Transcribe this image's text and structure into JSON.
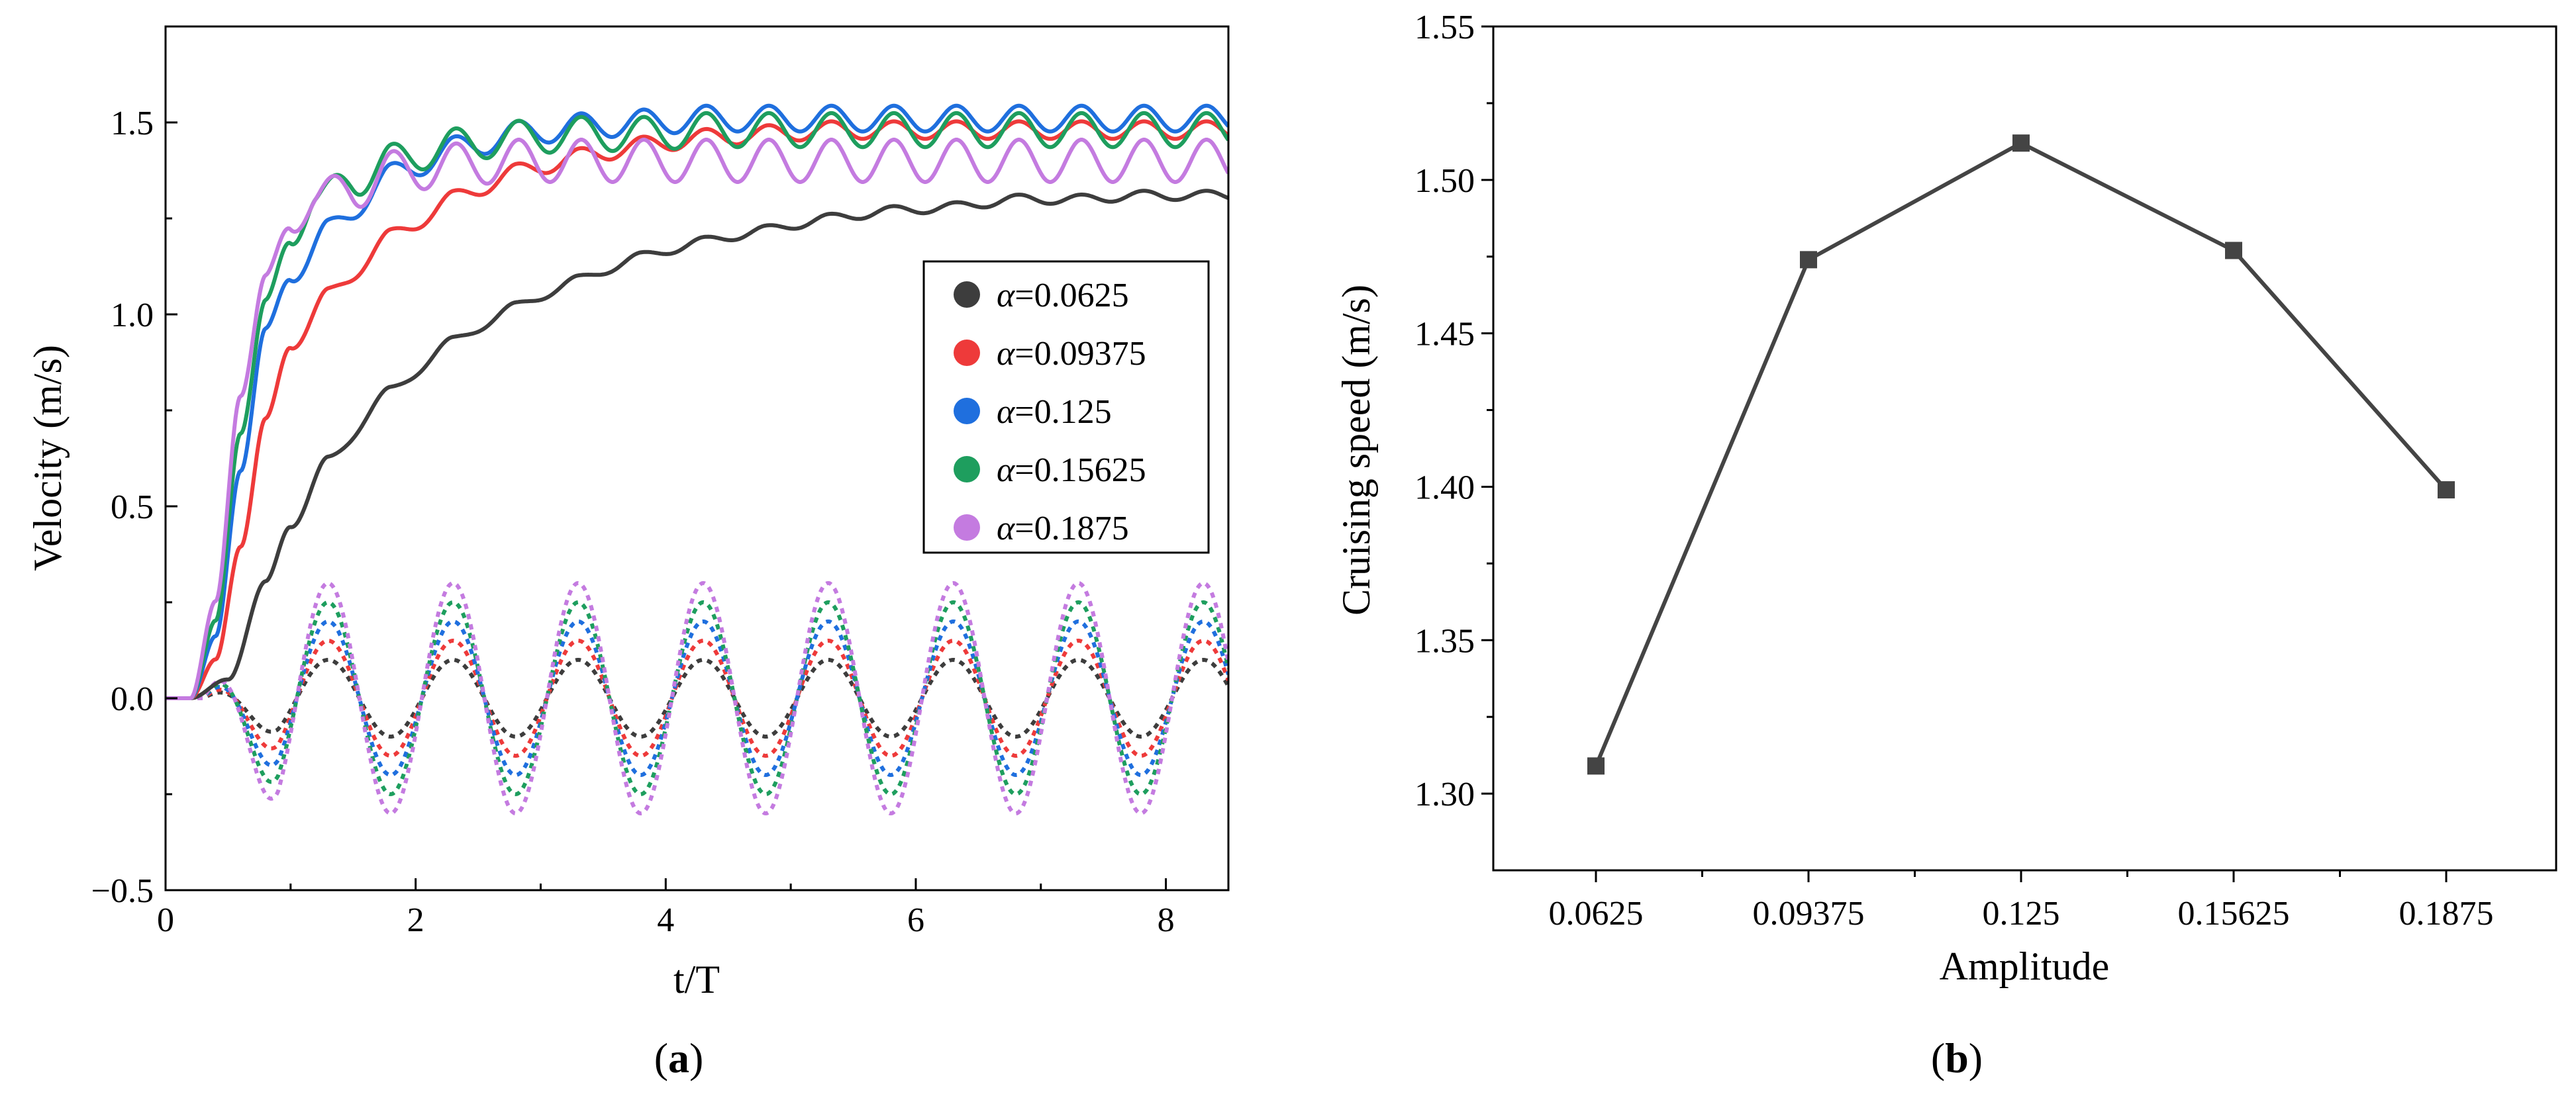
{
  "chart_data": [
    {
      "panel": "a",
      "type": "line",
      "xlabel": "t/T",
      "ylabel": "Velocity (m/s)",
      "xlim": [
        0,
        8.5
      ],
      "ylim": [
        -0.5,
        1.75
      ],
      "xticks": [
        0,
        2,
        4,
        6,
        8
      ],
      "yticks": [
        -0.5,
        0.0,
        0.5,
        1.0,
        1.5
      ],
      "xtick_labels": [
        "0",
        "2",
        "4",
        "6",
        "8"
      ],
      "ytick_labels": [
        "−0.5",
        "0.0",
        "0.5",
        "1.0",
        "1.5"
      ],
      "legend_position": "center-right",
      "legend_prefix": "α",
      "series": [
        {
          "name": "α=0.0625",
          "value_label": "=0.0625",
          "color": "#3d3d3d",
          "forward_speed_x": [
            0,
            0.2,
            0.5,
            0.8,
            1.0,
            1.3,
            1.8,
            2.3,
            2.8,
            3.3,
            3.8,
            4.3,
            4.8,
            5.3,
            5.8,
            6.3,
            6.8,
            7.3,
            7.8,
            8.3,
            8.5
          ],
          "forward_speed_y": [
            0,
            0.0,
            0.05,
            0.3,
            0.45,
            0.62,
            0.8,
            0.93,
            1.02,
            1.09,
            1.15,
            1.19,
            1.22,
            1.25,
            1.27,
            1.28,
            1.3,
            1.3,
            1.31,
            1.31,
            1.31
          ],
          "lateral_amplitude": 0.1
        },
        {
          "name": "α=0.09375",
          "value_label": "=0.09375",
          "color": "#ee3a3a",
          "forward_speed_x": [
            0,
            0.2,
            0.4,
            0.6,
            0.8,
            1.0,
            1.3,
            1.8,
            2.3,
            2.8,
            3.3,
            3.8,
            4.3,
            4.8,
            5.3,
            5.8,
            6.3,
            6.8,
            7.3,
            7.8,
            8.3,
            8.5
          ],
          "forward_speed_y": [
            0,
            0.0,
            0.1,
            0.4,
            0.72,
            0.92,
            1.05,
            1.2,
            1.3,
            1.37,
            1.41,
            1.44,
            1.46,
            1.47,
            1.48,
            1.48,
            1.48,
            1.48,
            1.48,
            1.48,
            1.48,
            1.48
          ],
          "lateral_amplitude": 0.15
        },
        {
          "name": "α=0.125",
          "value_label": "=0.125",
          "color": "#1f6fde",
          "forward_speed_x": [
            0,
            0.2,
            0.4,
            0.6,
            0.8,
            1.0,
            1.3,
            1.8,
            2.3,
            2.8,
            3.3,
            3.8,
            4.3,
            4.8,
            5.3,
            5.8,
            6.3,
            6.8,
            7.3,
            7.8,
            8.3,
            8.5
          ],
          "forward_speed_y": [
            0,
            0.0,
            0.16,
            0.6,
            0.95,
            1.1,
            1.22,
            1.36,
            1.43,
            1.47,
            1.49,
            1.5,
            1.51,
            1.51,
            1.51,
            1.51,
            1.51,
            1.51,
            1.51,
            1.51,
            1.51,
            1.51
          ],
          "lateral_amplitude": 0.2
        },
        {
          "name": "α=0.15625",
          "value_label": "=0.15625",
          "color": "#1e9e5e",
          "forward_speed_x": [
            0,
            0.2,
            0.4,
            0.6,
            0.8,
            1.0,
            1.2,
            1.5,
            1.8,
            2.3,
            2.8,
            3.3,
            3.8,
            4.3,
            4.8,
            5.3,
            5.8,
            6.3,
            6.8,
            7.3,
            7.8,
            8.3,
            8.5
          ],
          "forward_speed_y": [
            0,
            0.0,
            0.2,
            0.7,
            1.02,
            1.2,
            1.3,
            1.35,
            1.4,
            1.44,
            1.46,
            1.47,
            1.47,
            1.48,
            1.48,
            1.48,
            1.48,
            1.48,
            1.48,
            1.48,
            1.48,
            1.48,
            1.48
          ],
          "lateral_amplitude": 0.25
        },
        {
          "name": "α=0.1875",
          "value_label": "=0.1875",
          "color": "#c47be0",
          "forward_speed_x": [
            0,
            0.2,
            0.4,
            0.6,
            0.8,
            1.0,
            1.2,
            1.5,
            1.8,
            2.3,
            2.8,
            3.3,
            3.8,
            4.3,
            4.8,
            5.3,
            5.8,
            6.3,
            6.8,
            7.3,
            7.8,
            8.3,
            8.5
          ],
          "forward_speed_y": [
            0,
            0.0,
            0.25,
            0.8,
            1.08,
            1.24,
            1.3,
            1.33,
            1.37,
            1.39,
            1.4,
            1.4,
            1.4,
            1.4,
            1.4,
            1.4,
            1.4,
            1.4,
            1.4,
            1.4,
            1.4,
            1.4,
            1.4
          ],
          "lateral_amplitude": 0.3
        }
      ]
    },
    {
      "panel": "b",
      "type": "line",
      "xlabel": "Amplitude",
      "ylabel": "Cruising speed (m/s)",
      "categories": [
        "0.0625",
        "0.09375",
        "0.125",
        "0.15625",
        "0.1875"
      ],
      "values": [
        1.309,
        1.474,
        1.512,
        1.477,
        1.399
      ],
      "ylim": [
        1.275,
        1.55
      ],
      "yticks": [
        1.3,
        1.35,
        1.4,
        1.45,
        1.5,
        1.55
      ],
      "ytick_labels": [
        "1.30",
        "1.35",
        "1.40",
        "1.45",
        "1.50",
        "1.55"
      ],
      "color": "#444444",
      "marker": "square"
    }
  ],
  "panel_labels": {
    "a_open": "(",
    "a": "a",
    "a_close": ")",
    "b_open": "(",
    "b": "b",
    "b_close": ")"
  }
}
